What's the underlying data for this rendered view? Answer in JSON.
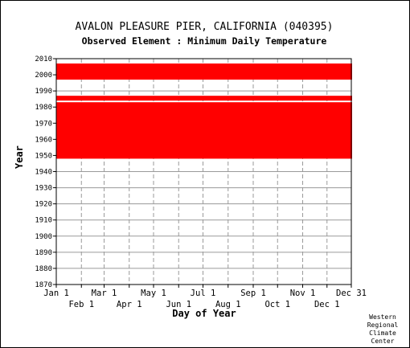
{
  "chart_data": {
    "type": "scatter",
    "title": "AVALON PLEASURE PIER, CALIFORNIA   (040395)",
    "subtitle": "Observed Element : Minimum Daily Temperature",
    "xlabel": "Day of Year",
    "ylabel": "Year",
    "credit": [
      "Western",
      "Regional",
      "Climate",
      "Center"
    ],
    "ylim": [
      1870,
      2010
    ],
    "yticks": [
      1870,
      1880,
      1890,
      1900,
      1910,
      1920,
      1930,
      1940,
      1950,
      1960,
      1970,
      1980,
      1990,
      2000,
      2010
    ],
    "xticks_top_row": [
      "Jan 1",
      "Mar 1",
      "May 1",
      "Jul 1",
      "Sep 1",
      "Nov 1",
      "Dec 31"
    ],
    "xticks_bottom_row": [
      "Feb 1",
      "Apr 1",
      "Jun 1",
      "Aug 1",
      "Oct 1",
      "Dec 1"
    ],
    "grid": true,
    "series_color": "#ff0000",
    "observed_periods": [
      {
        "start_year": 1948,
        "end_year": 1982,
        "start_day": "Jan 1",
        "end_day": "Dec 31"
      },
      {
        "start_year": 1984,
        "end_year": 1986,
        "start_day": "Jan 1",
        "end_day": "Dec 31"
      },
      {
        "start_year": 1997,
        "end_year": 2006,
        "start_day": "Jan 1",
        "end_day": "Dec 31"
      }
    ]
  }
}
